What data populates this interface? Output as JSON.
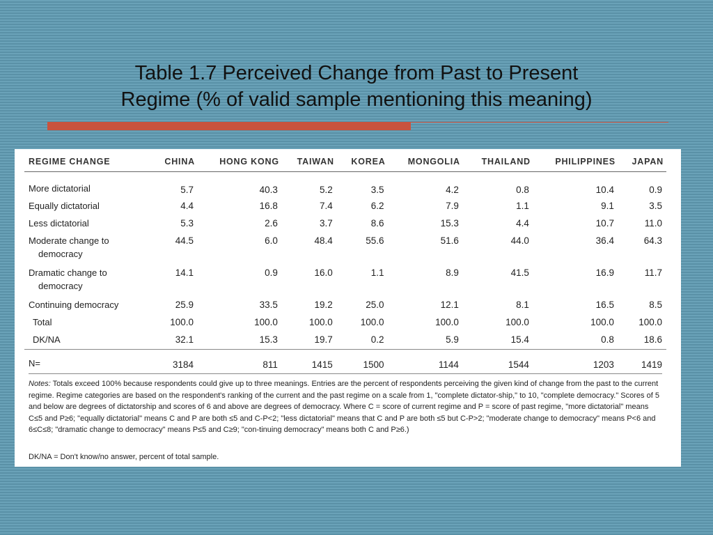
{
  "title_line1": "Table 1.7 Perceived Change from Past to Present",
  "title_line2": "Regime (% of valid sample mentioning this meaning)",
  "colors": {
    "background": "#5f97ad",
    "accent": "#c9533e"
  },
  "table": {
    "header": [
      "REGIME CHANGE",
      "CHINA",
      "HONG KONG",
      "TAIWAN",
      "KOREA",
      "MONGOLIA",
      "THAILAND",
      "PHILIPPINES",
      "JAPAN"
    ],
    "rows": [
      {
        "label": "More dictatorial",
        "label2": "",
        "values": [
          "5.7",
          "40.3",
          "5.2",
          "3.5",
          "4.2",
          "0.8",
          "10.4",
          "0.9"
        ]
      },
      {
        "label": "Equally dictatorial",
        "label2": "",
        "values": [
          "4.4",
          "16.8",
          "7.4",
          "6.2",
          "7.9",
          "1.1",
          "9.1",
          "3.5"
        ]
      },
      {
        "label": "Less dictatorial",
        "label2": "",
        "values": [
          "5.3",
          "2.6",
          "3.7",
          "8.6",
          "15.3",
          "4.4",
          "10.7",
          "11.0"
        ]
      },
      {
        "label": "Moderate change to",
        "label2": "democracy",
        "values": [
          "44.5",
          "6.0",
          "48.4",
          "55.6",
          "51.6",
          "44.0",
          "36.4",
          "64.3"
        ]
      },
      {
        "label": "Dramatic change to",
        "label2": "democracy",
        "values": [
          "14.1",
          "0.9",
          "16.0",
          "1.1",
          "8.9",
          "41.5",
          "16.9",
          "11.7"
        ]
      },
      {
        "label": "Continuing democracy",
        "label2": "",
        "values": [
          "25.9",
          "33.5",
          "19.2",
          "25.0",
          "12.1",
          "8.1",
          "16.5",
          "8.5"
        ]
      },
      {
        "label": "Total",
        "label2": "",
        "values": [
          "100.0",
          "100.0",
          "100.0",
          "100.0",
          "100.0",
          "100.0",
          "100.0",
          "100.0"
        ]
      },
      {
        "label": "DK/NA",
        "label2": "",
        "values": [
          "32.1",
          "15.3",
          "19.7",
          "0.2",
          "5.9",
          "15.4",
          "0.8",
          "18.6"
        ]
      }
    ],
    "n_row": {
      "label": "N=",
      "values": [
        "3184",
        "811",
        "1415",
        "1500",
        "1144",
        "1544",
        "1203",
        "1419"
      ]
    }
  },
  "notes": {
    "lead": "Notes:",
    "text": " Totals exceed 100% because respondents could give up to three meanings. Entries are the percent of respondents perceiving the given kind of change from the past to the current regime. Regime categories are based on the respondent's ranking of the current and the past regime on a scale from 1, \"complete dictator-ship,\" to 10, \"complete democracy.\" Scores of 5 and below are degrees of dictatorship and scores of 6 and above are degrees of democracy. Where C = score of current regime and P = score of past regime, \"more dictatorial\" means C≤5 and P≥6; \"equally dictatorial\" means C and P are both ≤5 and C-P<2; \"less dictatorial\" means that C and P are both ≤5 but C-P>2; \"moderate change to democracy\" means P<6 and 6≤C≤8; \"dramatic change to democracy\" means P≤5 and C≥9; \"con-tinuing democracy\" means both C and P≥6.)",
    "dkna": "DK/NA = Don't know/no answer, percent of total sample."
  }
}
